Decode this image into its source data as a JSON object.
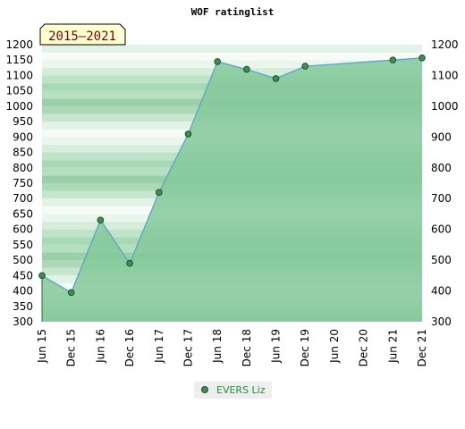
{
  "chart_data": {
    "type": "area",
    "title": "WOF ratinglist",
    "range_label": "2015–2021",
    "x_ticks": [
      "Jun 15",
      "Dec 15",
      "Jun 16",
      "Dec 16",
      "Jun 17",
      "Dec 17",
      "Jun 18",
      "Dec 18",
      "Jun 19",
      "Dec 19",
      "Jun 20",
      "Dec 20",
      "Jun 21",
      "Dec 21"
    ],
    "y_ticks": [
      300,
      350,
      400,
      450,
      500,
      550,
      600,
      650,
      700,
      750,
      800,
      850,
      900,
      950,
      1000,
      1050,
      1100,
      1150,
      1200
    ],
    "y_ticks_right": [
      300,
      400,
      500,
      600,
      700,
      800,
      900,
      1000,
      1100,
      1200
    ],
    "ylim": [
      300,
      1200
    ],
    "series": [
      {
        "name": "EVERS Liz",
        "x": [
          "Jun 15",
          "Dec 15",
          "Jun 16",
          "Dec 16",
          "Jun 17",
          "Dec 17",
          "Jun 18",
          "Dec 18",
          "Jun 19",
          "Dec 19",
          "Jun 21",
          "Dec 21"
        ],
        "values": [
          450,
          395,
          630,
          490,
          720,
          910,
          1145,
          1120,
          1090,
          1130,
          1150,
          1157
        ]
      }
    ],
    "colors": {
      "fill": "#84c89a",
      "line": "#5aa6c8",
      "marker": "#3f8f55",
      "band_light": "#eef8f1",
      "band_dark": "#a6d8b3"
    },
    "legend_position": "bottom-center",
    "grid": true
  }
}
